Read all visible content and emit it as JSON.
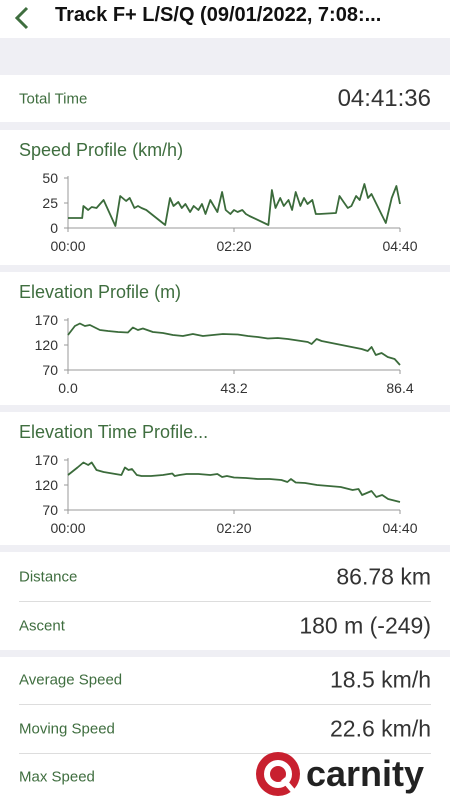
{
  "header": {
    "title": "Track F+ L/S/Q  (09/01/2022, 7:08:..."
  },
  "total_time": {
    "label": "Total Time",
    "value": "04:41:36"
  },
  "chart_data": [
    {
      "type": "line",
      "title": "Speed Profile (km/h)",
      "color": "#3b6b3b",
      "x": [
        0,
        12,
        13,
        17,
        20,
        24,
        27,
        30,
        40,
        44,
        49,
        52,
        56,
        59,
        62,
        66,
        82,
        86,
        89,
        93,
        96,
        99,
        103,
        106,
        110,
        113,
        116,
        120,
        123,
        126,
        130,
        133,
        137,
        140,
        143,
        147,
        150,
        153,
        169,
        172,
        175,
        179,
        182,
        186,
        189,
        192,
        196,
        199,
        202,
        206,
        209,
        212,
        226,
        229,
        233,
        236,
        239,
        243,
        246,
        250,
        253,
        256,
        268,
        273,
        277,
        280
      ],
      "values": [
        10,
        10,
        22,
        18,
        21,
        20,
        24,
        28,
        2,
        32,
        27,
        30,
        20,
        22,
        20,
        18,
        3,
        30,
        22,
        26,
        20,
        24,
        16,
        22,
        18,
        24,
        14,
        28,
        22,
        16,
        36,
        18,
        14,
        18,
        16,
        18,
        14,
        12,
        3,
        38,
        20,
        30,
        22,
        28,
        18,
        36,
        22,
        30,
        24,
        28,
        14,
        14,
        15,
        32,
        25,
        20,
        22,
        32,
        28,
        44,
        30,
        34,
        5,
        30,
        42,
        24
      ],
      "xlim": [
        0,
        280
      ],
      "xticks": [
        {
          "value": 0,
          "label": "00:00"
        },
        {
          "value": 140,
          "label": "02:20"
        },
        {
          "value": 280,
          "label": "04:40"
        }
      ],
      "ylim": [
        0,
        50
      ],
      "yticks": [
        50,
        25,
        0
      ],
      "grid": false
    },
    {
      "type": "line",
      "title": "Elevation Profile (m)",
      "color": "#3b6b3b",
      "x": [
        0,
        1.8,
        3.1,
        4.4,
        5.7,
        7.0,
        8.3,
        10.4,
        13.0,
        15.6,
        16.9,
        18.2,
        19.5,
        22.1,
        24.7,
        27.3,
        29.9,
        32.5,
        35.1,
        37.7,
        40.3,
        44.2,
        46.8,
        49.4,
        52.0,
        54.6,
        57.2,
        59.8,
        62.4,
        63.4,
        64.7,
        66.0,
        68.6,
        71.2,
        73.8,
        76.4,
        78.0,
        79.0,
        80.1,
        81.6,
        83.2,
        85.0,
        86.4
      ],
      "values": [
        140,
        158,
        163,
        158,
        160,
        155,
        150,
        148,
        146,
        145,
        155,
        150,
        153,
        146,
        144,
        140,
        138,
        142,
        138,
        140,
        142,
        141,
        138,
        136,
        133,
        134,
        132,
        129,
        126,
        122,
        132,
        128,
        124,
        120,
        116,
        112,
        108,
        116,
        100,
        104,
        96,
        92,
        80
      ],
      "xlim": [
        0,
        86.4
      ],
      "xticks": [
        {
          "value": 0,
          "label": "0.0"
        },
        43.2,
        86.4
      ],
      "ylim": [
        70,
        170
      ],
      "yticks": [
        170,
        120,
        70
      ],
      "grid": false
    },
    {
      "type": "line",
      "title": "Elevation Time Profile...",
      "color": "#3b6b3b",
      "x": [
        0,
        8,
        13,
        17,
        20,
        24,
        30,
        40,
        45,
        48,
        51,
        54,
        58,
        62,
        70,
        80,
        88,
        90,
        94,
        100,
        110,
        120,
        126,
        130,
        134,
        140,
        150,
        160,
        170,
        180,
        185,
        188,
        192,
        200,
        210,
        220,
        230,
        240,
        245,
        248,
        252,
        256,
        260,
        265,
        270,
        280
      ],
      "values": [
        140,
        155,
        165,
        160,
        165,
        150,
        146,
        142,
        140,
        155,
        150,
        152,
        140,
        138,
        138,
        140,
        143,
        138,
        140,
        142,
        142,
        140,
        142,
        136,
        138,
        135,
        134,
        132,
        132,
        130,
        126,
        132,
        125,
        124,
        120,
        118,
        116,
        110,
        112,
        100,
        104,
        108,
        96,
        100,
        92,
        86
      ],
      "xlim": [
        0,
        280
      ],
      "xticks": [
        {
          "value": 0,
          "label": "00:00"
        },
        {
          "value": 140,
          "label": "02:20"
        },
        {
          "value": 280,
          "label": "04:40"
        }
      ],
      "ylim": [
        70,
        170
      ],
      "yticks": [
        170,
        120,
        70
      ],
      "grid": false
    }
  ],
  "stats": [
    {
      "label": "Distance",
      "value": "86.78 km"
    },
    {
      "label": "Ascent",
      "value": "180 m (-249)"
    },
    {
      "label": "Average Speed",
      "value": "18.5 km/h"
    },
    {
      "label": "Moving Speed",
      "value": "22.6 km/h"
    },
    {
      "label": "Max Speed"
    }
  ],
  "watermark": "carnity"
}
